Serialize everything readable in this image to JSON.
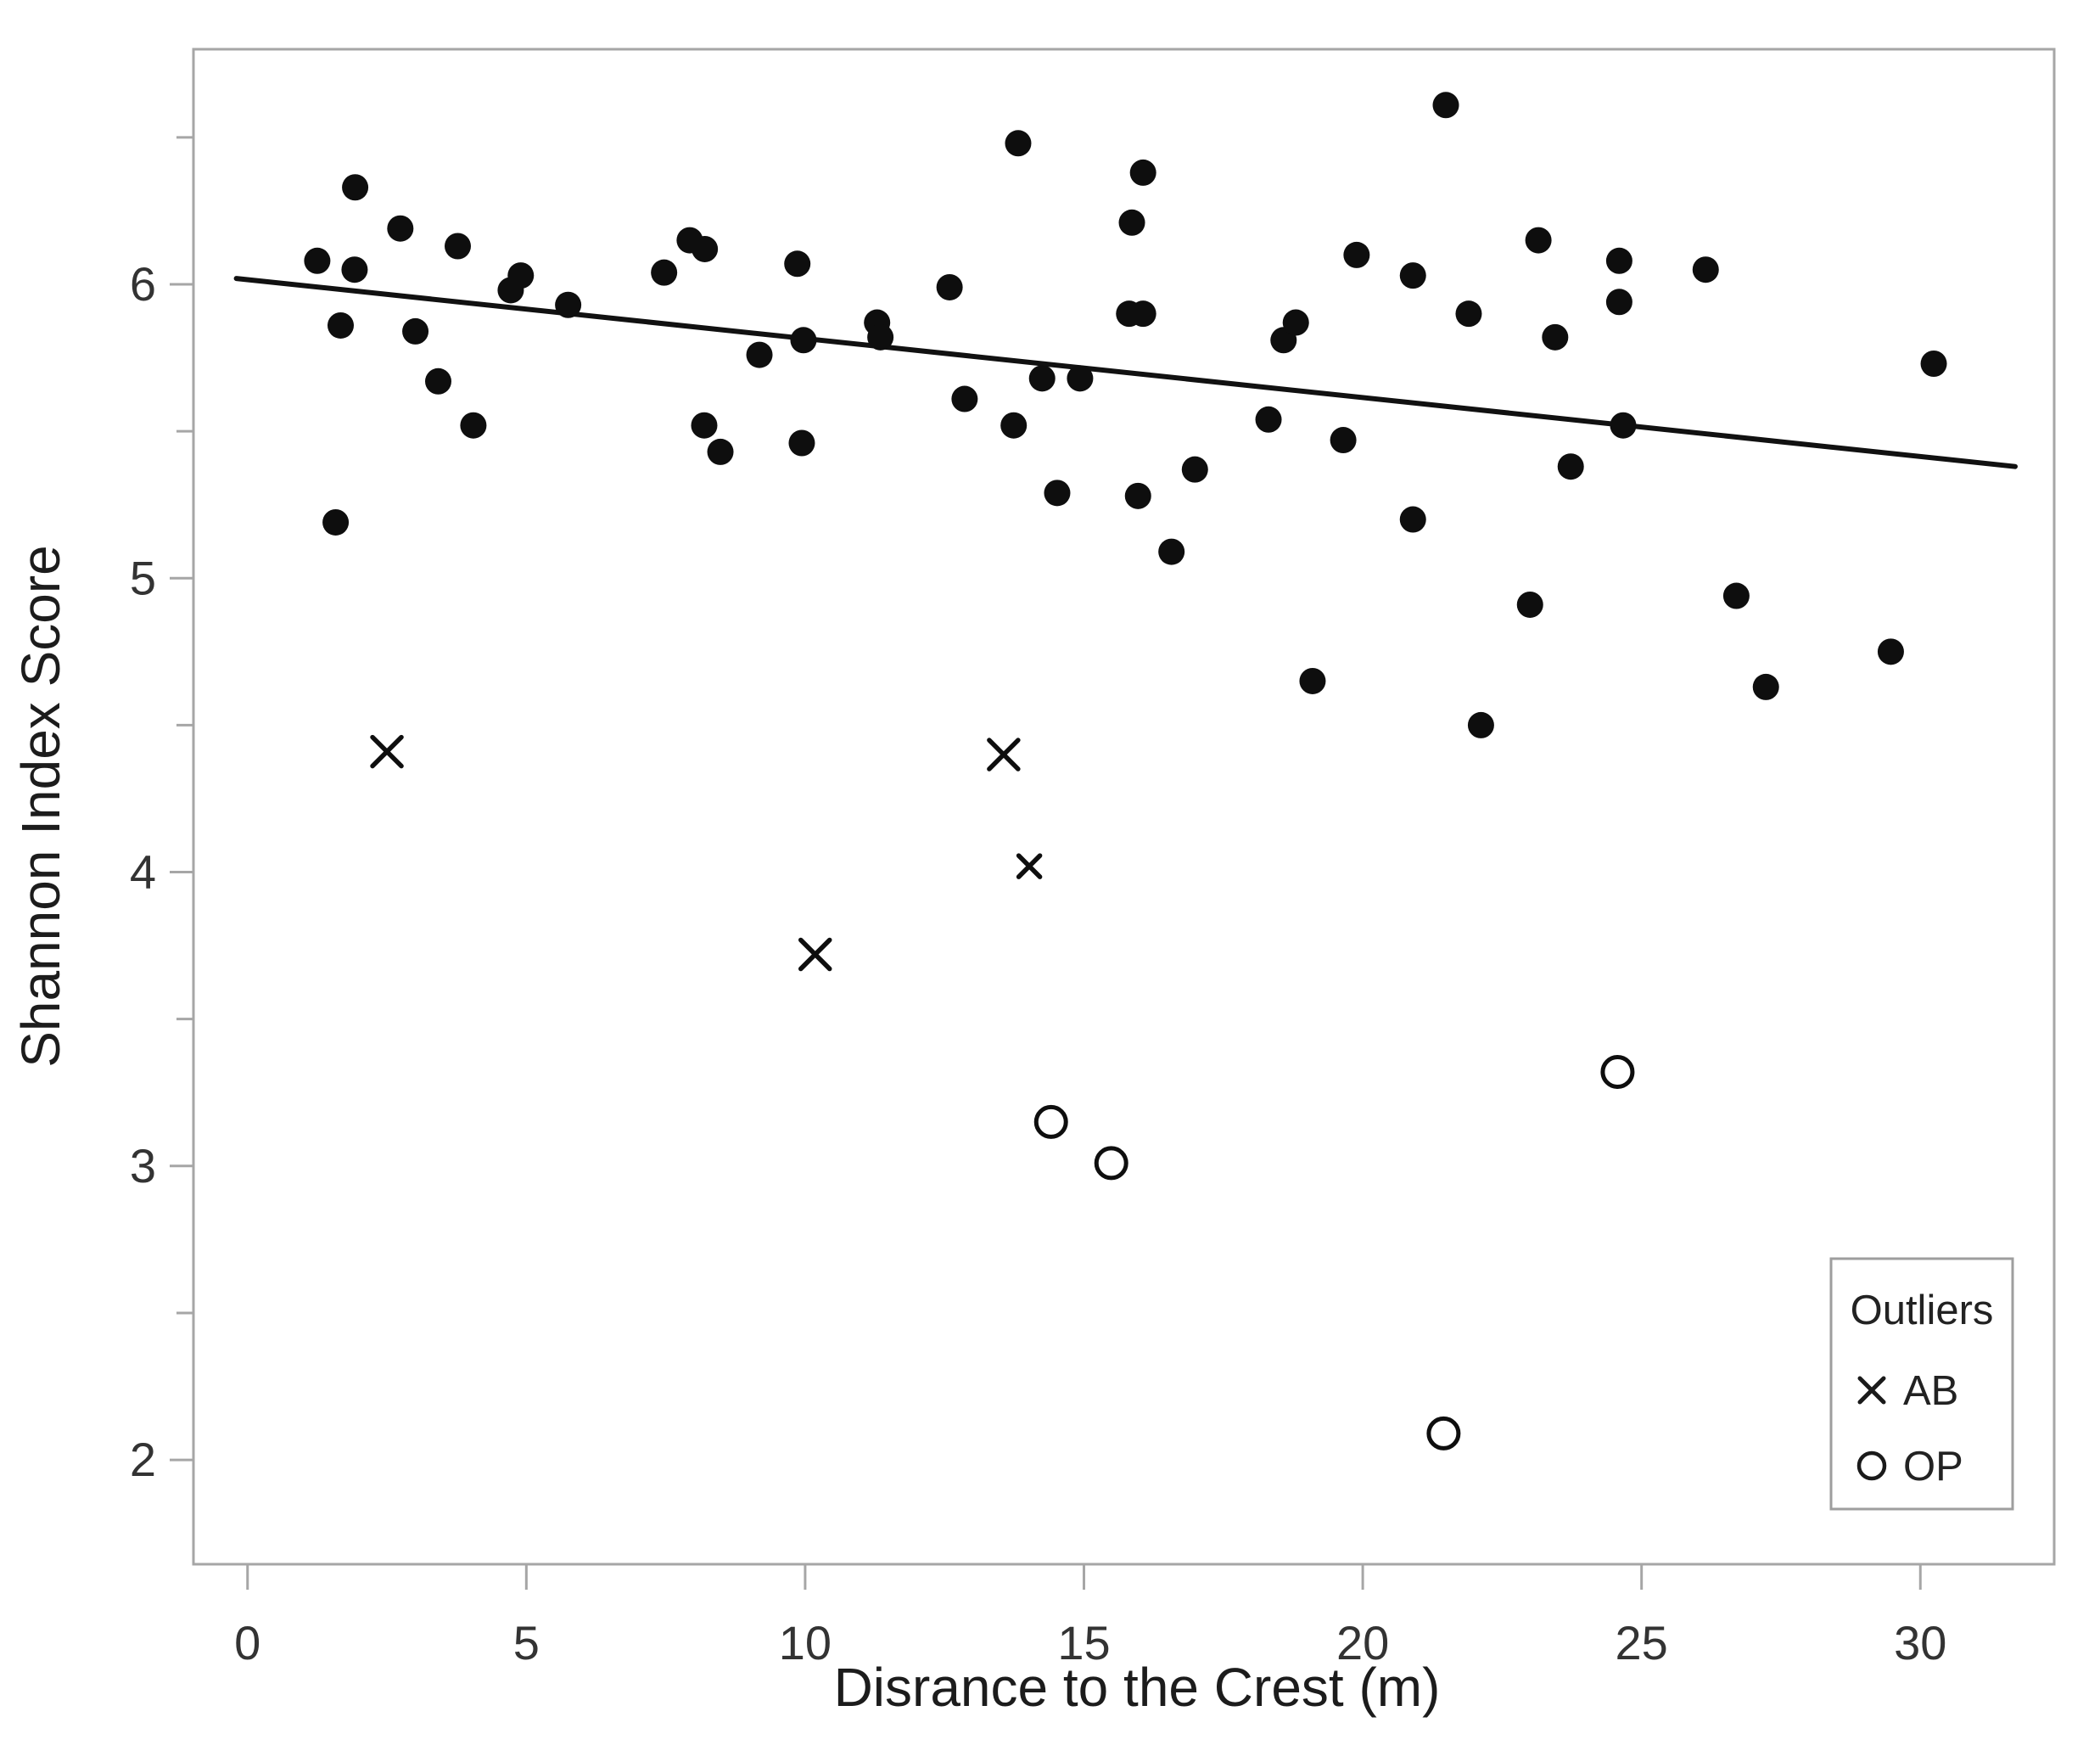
{
  "figure": {
    "x_axis": {
      "label": "Disrance to the Crest (m)",
      "major_ticks": [
        0,
        5,
        10,
        15,
        20,
        25,
        30
      ],
      "range": [
        -0.97,
        32.4
      ]
    },
    "y_axis": {
      "label": "Shannon Index Score",
      "major_ticks": [
        2,
        3,
        4,
        5,
        6
      ],
      "minor_ticks": [
        2.5,
        3.5,
        4.5,
        5.5,
        6.5
      ],
      "range": [
        1.645,
        6.8
      ]
    },
    "legend": {
      "title": "Outliers",
      "items": [
        {
          "symbol": "x-mark",
          "label": "AB"
        },
        {
          "symbol": "open-circle",
          "label": "OP"
        }
      ]
    },
    "colors": {
      "point": "#0e0e0e",
      "line": "#111111",
      "frame": "#a6a6a6",
      "tick_label": "#333333",
      "background": "#ffffff"
    }
  },
  "chart_data": {
    "type": "scatter",
    "title": "",
    "xlabel": "Disrance to the Crest (m)",
    "ylabel": "Shannon Index Score",
    "xlim": [
      -0.97,
      32.4
    ],
    "ylim": [
      1.645,
      6.8
    ],
    "grid": false,
    "legend_position": "bottom-right",
    "series": [
      {
        "name": "main",
        "marker": "filled-circle",
        "points": [
          [
            1.25,
            6.08
          ],
          [
            1.58,
            5.19
          ],
          [
            1.67,
            5.86
          ],
          [
            1.92,
            6.05
          ],
          [
            1.93,
            6.33
          ],
          [
            2.74,
            6.19
          ],
          [
            3.01,
            5.84
          ],
          [
            3.42,
            5.67
          ],
          [
            3.77,
            6.13
          ],
          [
            4.05,
            5.52
          ],
          [
            4.72,
            5.98
          ],
          [
            4.9,
            6.03
          ],
          [
            5.75,
            5.93
          ],
          [
            7.47,
            6.04
          ],
          [
            7.93,
            6.15
          ],
          [
            8.19,
            5.52
          ],
          [
            8.2,
            6.12
          ],
          [
            8.48,
            5.43
          ],
          [
            9.18,
            5.76
          ],
          [
            9.86,
            6.07
          ],
          [
            9.94,
            5.46
          ],
          [
            9.97,
            5.81
          ],
          [
            11.29,
            5.87
          ],
          [
            11.35,
            5.82
          ],
          [
            12.59,
            5.99
          ],
          [
            12.86,
            5.61
          ],
          [
            13.74,
            5.52
          ],
          [
            13.82,
            6.48
          ],
          [
            14.25,
            5.68
          ],
          [
            14.52,
            5.29
          ],
          [
            14.93,
            5.68
          ],
          [
            15.81,
            5.9
          ],
          [
            15.86,
            6.21
          ],
          [
            15.97,
            5.28
          ],
          [
            16.06,
            6.38
          ],
          [
            16.06,
            5.9
          ],
          [
            16.57,
            5.09
          ],
          [
            16.99,
            5.37
          ],
          [
            18.31,
            5.54
          ],
          [
            18.58,
            5.81
          ],
          [
            18.8,
            5.87
          ],
          [
            19.1,
            4.65
          ],
          [
            19.65,
            5.47
          ],
          [
            19.89,
            6.1
          ],
          [
            20.9,
            6.03
          ],
          [
            20.9,
            5.2
          ],
          [
            21.49,
            6.61
          ],
          [
            21.9,
            5.9
          ],
          [
            22.12,
            4.5
          ],
          [
            23.0,
            4.91
          ],
          [
            23.15,
            6.15
          ],
          [
            23.45,
            5.82
          ],
          [
            23.73,
            5.38
          ],
          [
            24.6,
            6.08
          ],
          [
            24.6,
            5.94
          ],
          [
            24.67,
            5.52
          ],
          [
            26.15,
            6.05
          ],
          [
            26.7,
            4.94
          ],
          [
            27.23,
            4.63
          ],
          [
            29.47,
            4.75
          ],
          [
            30.24,
            5.73
          ]
        ]
      },
      {
        "name": "AB",
        "marker": "x",
        "points": [
          [
            2.5,
            4.41
          ],
          [
            10.18,
            3.72
          ],
          [
            13.56,
            4.4
          ],
          [
            14.02,
            4.02
          ]
        ],
        "small_point_index": 3
      },
      {
        "name": "OP",
        "marker": "open-circle",
        "points": [
          [
            14.41,
            3.15
          ],
          [
            15.49,
            3.01
          ],
          [
            21.45,
            2.09
          ],
          [
            24.57,
            3.32
          ]
        ]
      }
    ],
    "trendline": {
      "x1": -0.2,
      "y1": 6.02,
      "x2": 31.7,
      "y2": 5.38
    }
  }
}
